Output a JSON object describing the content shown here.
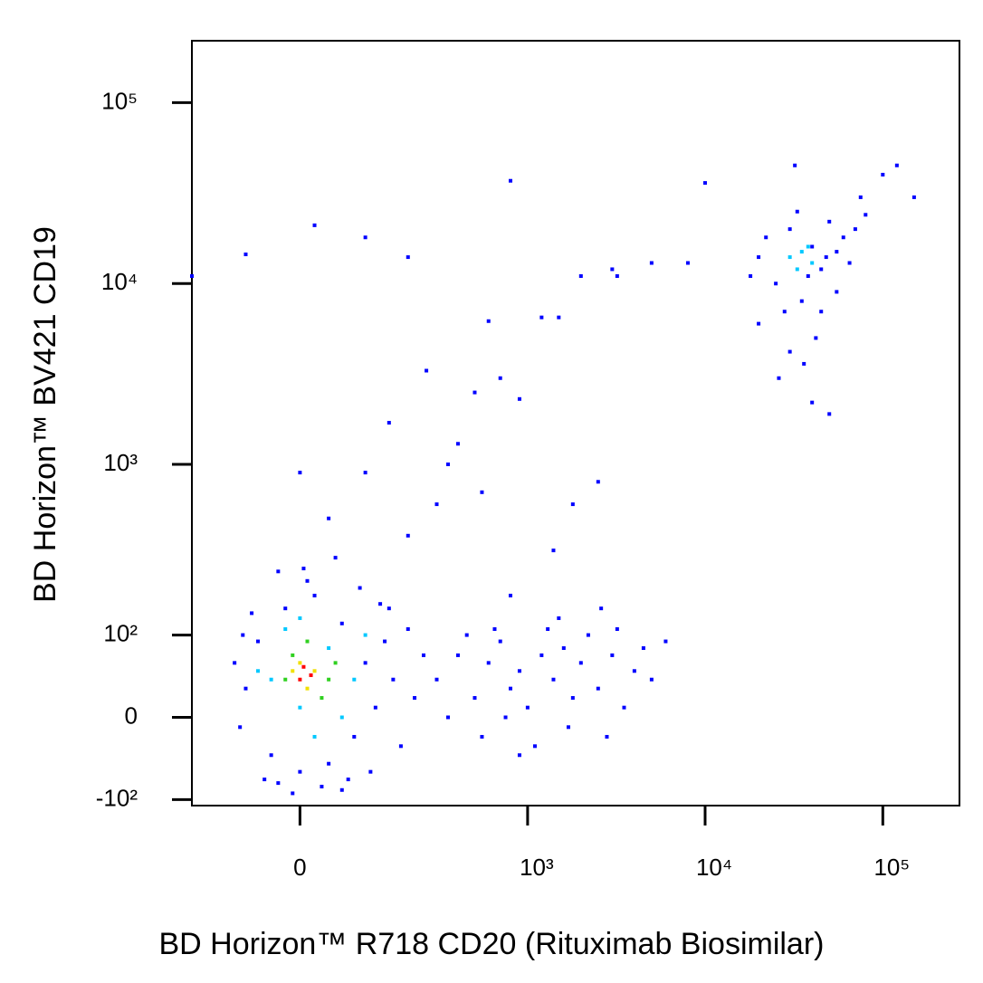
{
  "chart_data": {
    "type": "scatter",
    "xlabel": "BD Horizon™ R718 CD20 (Rituximab Biosimilar)",
    "ylabel": "BD Horizon™ BV421 CD19",
    "xlim": [
      -200,
      270000
    ],
    "ylim": [
      -110,
      220000
    ],
    "xticks": [
      0,
      {
        "value": 1000,
        "label": "10³"
      },
      {
        "value": 10000,
        "label": "10⁴"
      },
      {
        "value": 100000,
        "label": "10⁵"
      }
    ],
    "yticks": [
      {
        "value": -100,
        "label": "-10²"
      },
      0,
      {
        "value": 100,
        "label": "10²"
      },
      {
        "value": 1000,
        "label": "10³"
      },
      {
        "value": 10000,
        "label": "10⁴"
      },
      {
        "value": 100000,
        "label": "10⁵"
      }
    ],
    "series": [
      {
        "color": "#0000ff",
        "x": [
          -80,
          -60,
          -40,
          -20,
          0,
          20,
          40,
          60,
          80,
          100,
          120,
          140,
          -90,
          -70,
          -50,
          160,
          180,
          200,
          -100,
          10,
          -30,
          50,
          90,
          130,
          30,
          -10,
          70,
          110,
          150,
          220,
          250,
          -85,
          -30,
          5,
          60,
          40,
          100,
          200,
          300,
          150,
          260,
          -200,
          -80,
          20,
          100,
          200,
          0,
          300,
          400,
          500,
          600,
          700,
          800,
          900,
          1000,
          1200,
          1400,
          1600,
          1800,
          2000,
          2500,
          3000,
          3500,
          4000,
          4500,
          350,
          450,
          550,
          650,
          750,
          1100,
          1300,
          1700,
          2200,
          2800,
          3200,
          5000,
          6000,
          1500,
          900,
          2600,
          500,
          700,
          900,
          1200,
          1500,
          2000,
          3000,
          5000,
          8000,
          10000,
          600,
          800,
          1800,
          2500,
          400,
          350,
          550,
          1400,
          800,
          3200,
          20000,
          25000,
          30000,
          35000,
          40000,
          45000,
          50000,
          55000,
          60000,
          22000,
          28000,
          33000,
          38000,
          42000,
          48000,
          65000,
          70000,
          18000,
          26000,
          36000,
          40000,
          50000,
          75000,
          100000,
          120000,
          150000,
          80000,
          20000,
          30000,
          45000,
          55000,
          32000
        ],
        "values": [
          30,
          90,
          -40,
          150,
          -60,
          180,
          -50,
          120,
          -20,
          60,
          10,
          90,
          -10,
          140,
          -70,
          40,
          -30,
          110,
          60,
          220,
          250,
          300,
          200,
          160,
          -80,
          -90,
          -70,
          -60,
          150,
          20,
          70,
          100,
          -75,
          260,
          -85,
          500,
          900,
          400,
          600,
          1700,
          3300,
          11000,
          14500,
          21000,
          18000,
          14000,
          900,
          40,
          70,
          20,
          60,
          90,
          30,
          50,
          10,
          70,
          40,
          80,
          20,
          60,
          30,
          70,
          10,
          50,
          80,
          0,
          100,
          -20,
          110,
          0,
          -30,
          110,
          -10,
          100,
          -20,
          110,
          40,
          90,
          130,
          -40,
          150,
          2500,
          3000,
          2300,
          6500,
          6500,
          11000,
          12000,
          13000,
          13000,
          36000,
          6200,
          37000,
          600,
          800,
          1300,
          1000,
          700,
          330,
          180,
          11000,
          14000,
          10000,
          20000,
          8000,
          16000,
          12000,
          22000,
          9000,
          18000,
          18000,
          7000,
          25000,
          11000,
          5000,
          14000,
          13000,
          20000,
          11000,
          3000,
          3600,
          2200,
          1900,
          30000,
          40000,
          45000,
          30000,
          24000,
          6000,
          4200,
          7000,
          15000,
          45000
        ]
      },
      {
        "color": "#00c8ff",
        "x": [
          30000,
          35000,
          40000,
          33000,
          38000,
          -40,
          0,
          40,
          80,
          -20,
          60,
          20,
          -60,
          100,
          0
        ],
        "values": [
          14000,
          15000,
          13000,
          12000,
          16000,
          40,
          10,
          80,
          40,
          110,
          0,
          -20,
          50,
          100,
          130
        ]
      },
      {
        "color": "#30d020",
        "x": [
          -20,
          10,
          30,
          50,
          -10,
          40
        ],
        "values": [
          40,
          90,
          20,
          60,
          70,
          40
        ]
      },
      {
        "color": "#f0e000",
        "x": [
          0,
          20,
          10,
          -10
        ],
        "values": [
          60,
          50,
          30,
          50
        ]
      },
      {
        "color": "#ff0000",
        "x": [
          5,
          15,
          0
        ],
        "values": [
          55,
          45,
          40
        ]
      }
    ]
  }
}
